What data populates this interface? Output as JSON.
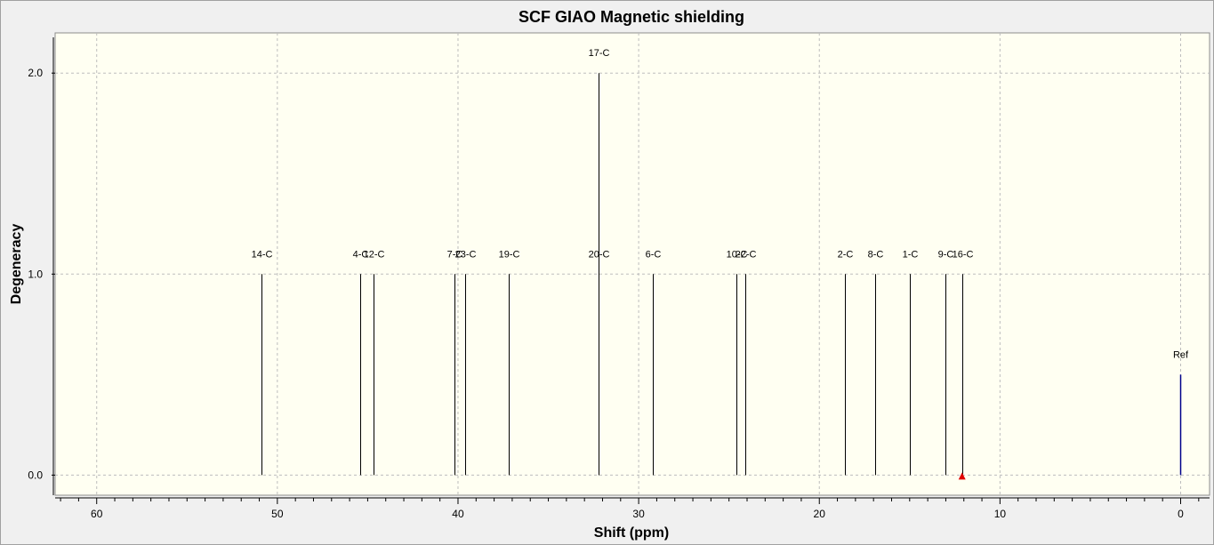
{
  "chart_data": {
    "type": "stick-spectrum",
    "title": "SCF GIAO Magnetic shielding",
    "xlabel": "Shift (ppm)",
    "ylabel": "Degeneracy",
    "xlim": [
      62.3,
      -1.6
    ],
    "ylim": [
      -0.1,
      2.2
    ],
    "x_ticks": [
      60,
      50,
      40,
      30,
      20,
      10,
      0
    ],
    "y_ticks": [
      {
        "value": 0.0,
        "label": "0.0"
      },
      {
        "value": 1.0,
        "label": "1.0"
      },
      {
        "value": 2.0,
        "label": "2.0"
      }
    ],
    "grid": true,
    "peaks": [
      {
        "label": "14-C",
        "x": 50.9,
        "y": 1
      },
      {
        "label": "4-C",
        "x": 45.4,
        "y": 1
      },
      {
        "label": "12-C",
        "x": 44.7,
        "y": 1
      },
      {
        "label": "7-C",
        "x": 40.2,
        "y": 1
      },
      {
        "label": "23-C",
        "x": 39.6,
        "y": 1
      },
      {
        "label": "19-C",
        "x": 37.2,
        "y": 1
      },
      {
        "label": "17-C",
        "x": 32.2,
        "y": 2
      },
      {
        "label": "20-C",
        "x": 32.2,
        "y": 1
      },
      {
        "label": "6-C",
        "x": 29.2,
        "y": 1
      },
      {
        "label": "10-C",
        "x": 24.6,
        "y": 1
      },
      {
        "label": "22-C",
        "x": 24.1,
        "y": 1
      },
      {
        "label": "2-C",
        "x": 18.6,
        "y": 1
      },
      {
        "label": "8-C",
        "x": 16.9,
        "y": 1
      },
      {
        "label": "1-C",
        "x": 15.0,
        "y": 1
      },
      {
        "label": "9-C",
        "x": 13.0,
        "y": 1
      },
      {
        "label": "16-C",
        "x": 12.1,
        "y": 1
      }
    ],
    "reference": {
      "label": "Ref",
      "x": 0.0,
      "y": 0.5,
      "color": "#00008b"
    },
    "marker": {
      "x": 12.1,
      "y": 0.0,
      "shape": "triangle",
      "color": "#e00000"
    },
    "colors": {
      "background": "#f0f0f0",
      "plot_background": "#fffff2",
      "peak": "#000000",
      "grid": "#bdbdbd"
    }
  }
}
